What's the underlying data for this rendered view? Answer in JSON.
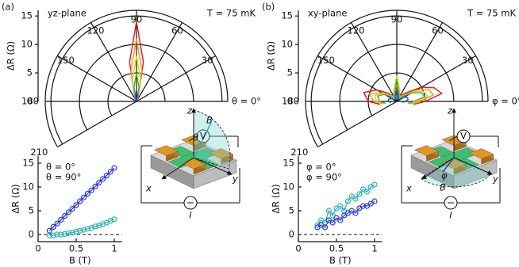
{
  "chart_data": [
    {
      "type": "polar",
      "panel_label": "(a)",
      "title": "yz-plane",
      "annotation": "T = 75 mK",
      "ylabel": "ΔR (Ω)",
      "ylim": [
        0,
        16
      ],
      "yticks": [
        0,
        5,
        10,
        15
      ],
      "thetaticks": [
        {
          "value": 0,
          "label": "θ = 0°"
        },
        30,
        60,
        90,
        120,
        150,
        180,
        210
      ],
      "theta": [
        0,
        30,
        45,
        60,
        70,
        80,
        90,
        100,
        110,
        120,
        135,
        150,
        180
      ],
      "series": [
        {
          "color": "#e8141c",
          "values": [
            0.3,
            0.3,
            0.3,
            0.3,
            0.9,
            7,
            14,
            7,
            0.9,
            0.3,
            0.3,
            0.3,
            0.3
          ]
        },
        {
          "color": "#f7941d",
          "values": [
            0.3,
            0.3,
            0.3,
            0.3,
            0.7,
            5.5,
            11,
            5.5,
            0.7,
            0.3,
            0.3,
            0.3,
            0.3
          ]
        },
        {
          "color": "#e0d800",
          "values": [
            0.3,
            0.3,
            0.3,
            0.3,
            0.5,
            4,
            8,
            4,
            0.5,
            0.3,
            0.3,
            0.3,
            0.3
          ]
        },
        {
          "color": "#3cb44b",
          "values": [
            0.3,
            0.3,
            0.3,
            0.3,
            0.3,
            2.5,
            5,
            2.5,
            0.3,
            0.3,
            0.3,
            0.3,
            0.3
          ]
        },
        {
          "color": "#1f4fd8",
          "values": [
            0.3,
            0.3,
            0.3,
            0.3,
            0.3,
            1,
            2,
            1,
            0.3,
            0.3,
            0.3,
            0.3,
            0.3
          ]
        }
      ]
    },
    {
      "type": "scatter",
      "xlabel": "B (T)",
      "ylabel": "ΔR (Ω)",
      "xlim": [
        0,
        1.1
      ],
      "ylim": [
        -1.5,
        16.5
      ],
      "xticks": [
        0,
        0.5,
        1
      ],
      "yticks": [
        0,
        5,
        10,
        15
      ],
      "hline": 0,
      "x": [
        0.15,
        0.2,
        0.25,
        0.3,
        0.35,
        0.4,
        0.45,
        0.5,
        0.55,
        0.6,
        0.65,
        0.7,
        0.75,
        0.8,
        0.85,
        0.9,
        0.95,
        1.0
      ],
      "series": [
        {
          "name": "θ = 0°",
          "color": "#2ab3b3",
          "values": [
            -0.2,
            -0.2,
            0,
            0,
            0.1,
            0.3,
            0.4,
            0.6,
            0.8,
            1,
            1.2,
            1.4,
            1.7,
            1.9,
            2.2,
            2.5,
            2.9,
            3.2
          ]
        },
        {
          "name": "θ = 90°",
          "color": "#2a3bd6",
          "values": [
            0.8,
            1.6,
            2.3,
            3.1,
            3.9,
            4.7,
            5.4,
            6.2,
            7.0,
            7.8,
            8.6,
            9.3,
            10.1,
            10.9,
            11.7,
            12.4,
            13.2,
            14.0
          ]
        }
      ]
    },
    {
      "type": "polar",
      "panel_label": "(b)",
      "title": "xy-plane",
      "annotation": "T = 75 mK",
      "ylabel": "ΔR (Ω)",
      "ylim": [
        0,
        16
      ],
      "yticks": [
        0,
        5,
        10,
        15
      ],
      "thetaticks": [
        {
          "value": 0,
          "label": "φ = 0°"
        },
        30,
        60,
        90,
        120,
        150,
        180,
        210
      ],
      "theta": [
        -10,
        0,
        10,
        20,
        30,
        45,
        60,
        75,
        90,
        105,
        120,
        135,
        150,
        165,
        180,
        190
      ],
      "series": [
        {
          "color": "#e8141c",
          "values": [
            3,
            5,
            8,
            7,
            5,
            2,
            1,
            1.5,
            2,
            1.5,
            1,
            2,
            4,
            6,
            5,
            3
          ]
        },
        {
          "color": "#f7941d",
          "values": [
            2.5,
            4,
            6.5,
            6,
            4,
            1.5,
            1,
            1.5,
            3,
            1.5,
            1,
            1.5,
            3,
            5,
            4,
            2.5
          ]
        },
        {
          "color": "#e0d800",
          "values": [
            2.2,
            3.5,
            5.5,
            5,
            3.5,
            1.2,
            1,
            2,
            4.5,
            2,
            1,
            1.2,
            2.8,
            4,
            3.5,
            2.2
          ]
        },
        {
          "color": "#3cb44b",
          "values": [
            2,
            3,
            5,
            4.5,
            3,
            1,
            0.8,
            1.5,
            4,
            1.5,
            0.8,
            1,
            2.5,
            3.5,
            3,
            2
          ]
        },
        {
          "color": "#1f4fd8",
          "values": [
            1,
            1.5,
            2,
            2,
            1.5,
            0.5,
            0.5,
            1,
            2,
            1,
            0.5,
            0.5,
            1,
            1.5,
            1.5,
            1
          ]
        }
      ]
    },
    {
      "type": "scatter",
      "xlabel": "B (T)",
      "ylabel": "ΔR (Ω)",
      "xlim": [
        0,
        1.1
      ],
      "ylim": [
        -1.5,
        16.5
      ],
      "xticks": [
        0,
        0.5,
        1
      ],
      "yticks": [
        0,
        5,
        10,
        15
      ],
      "hline": 0,
      "x": [
        0.25,
        0.3,
        0.35,
        0.4,
        0.45,
        0.5,
        0.55,
        0.6,
        0.65,
        0.7,
        0.75,
        0.8,
        0.85,
        0.9,
        0.95,
        1.0
      ],
      "series": [
        {
          "name": "φ = 0°",
          "color": "#2ab3b3",
          "values": [
            2,
            3,
            2.5,
            5,
            4,
            5.5,
            6,
            5,
            7,
            8,
            7.5,
            8.5,
            9.5,
            9,
            10,
            10.5
          ]
        },
        {
          "name": "φ = 90°",
          "color": "#2a3bd6",
          "values": [
            1.5,
            2,
            1.5,
            3,
            2.5,
            3.5,
            3,
            4,
            4.5,
            5,
            4.5,
            5.5,
            6,
            6,
            6.5,
            7
          ]
        }
      ]
    }
  ],
  "schematics": [
    {
      "z": "z",
      "B": "B",
      "angle": "θ",
      "V": "V",
      "x": "x",
      "y": "y",
      "I": "I"
    },
    {
      "z": "z",
      "B": "B",
      "angle": "φ",
      "V": "V",
      "x": "x",
      "y": "y",
      "I": "I"
    }
  ]
}
